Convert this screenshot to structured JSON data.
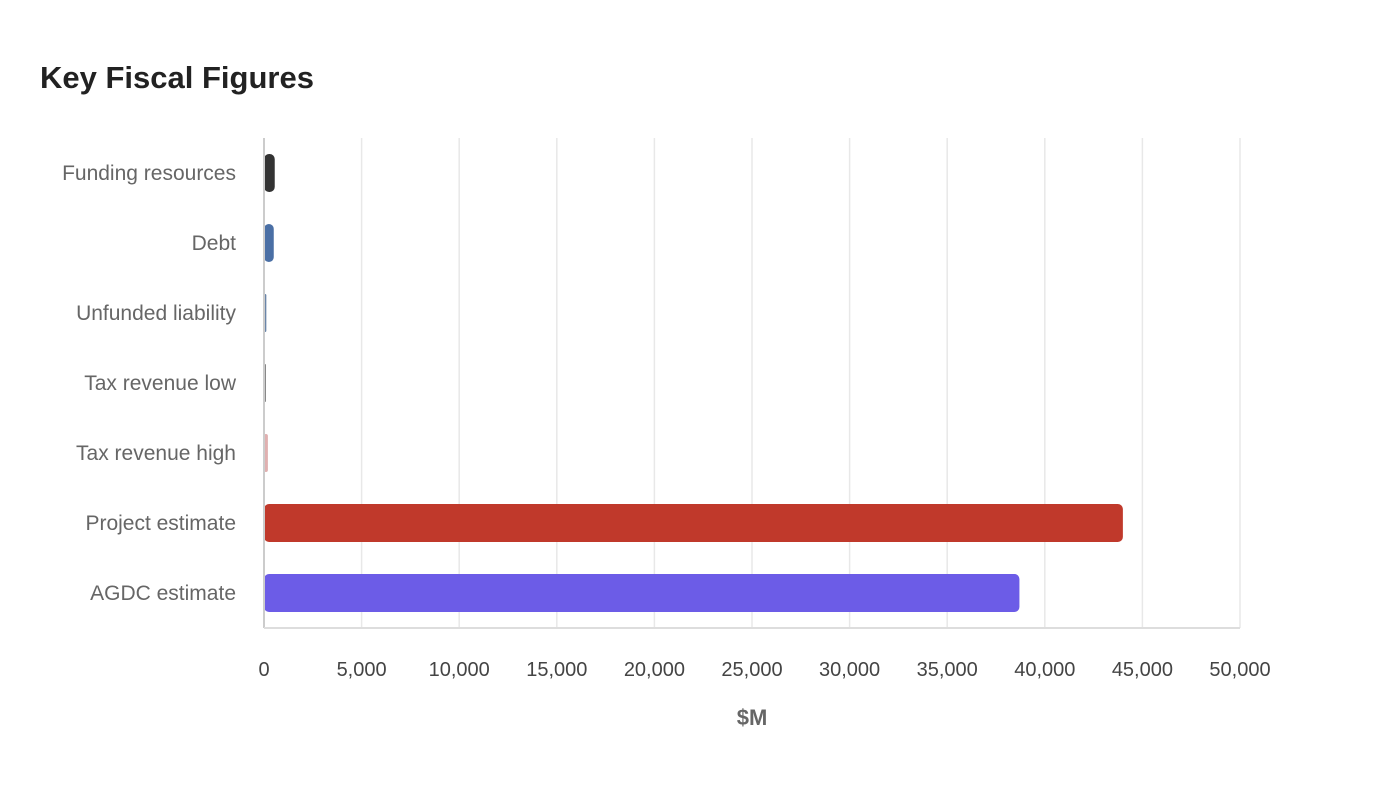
{
  "chart_data": {
    "type": "bar",
    "orientation": "horizontal",
    "title": "Key Fiscal Figures",
    "xlabel": "$M",
    "ylabel": "",
    "xlim": [
      0,
      50000
    ],
    "x_ticks": [
      0,
      5000,
      10000,
      15000,
      20000,
      25000,
      30000,
      35000,
      40000,
      45000,
      50000
    ],
    "x_tick_labels": [
      "0",
      "5,000",
      "10,000",
      "15,000",
      "20,000",
      "25,000",
      "30,000",
      "35,000",
      "40,000",
      "45,000",
      "50,000"
    ],
    "grid": true,
    "categories": [
      "Funding resources",
      "Debt",
      "Unfunded liability",
      "Tax revenue low",
      "Tax revenue high",
      "Project estimate",
      "AGDC estimate"
    ],
    "values": [
      550,
      500,
      120,
      100,
      200,
      44000,
      38700
    ],
    "colors": [
      "#333333",
      "#4a6fa5",
      "#6a85a8",
      "#888888",
      "#e0b0b0",
      "#c0392b",
      "#6c5ce7"
    ]
  }
}
